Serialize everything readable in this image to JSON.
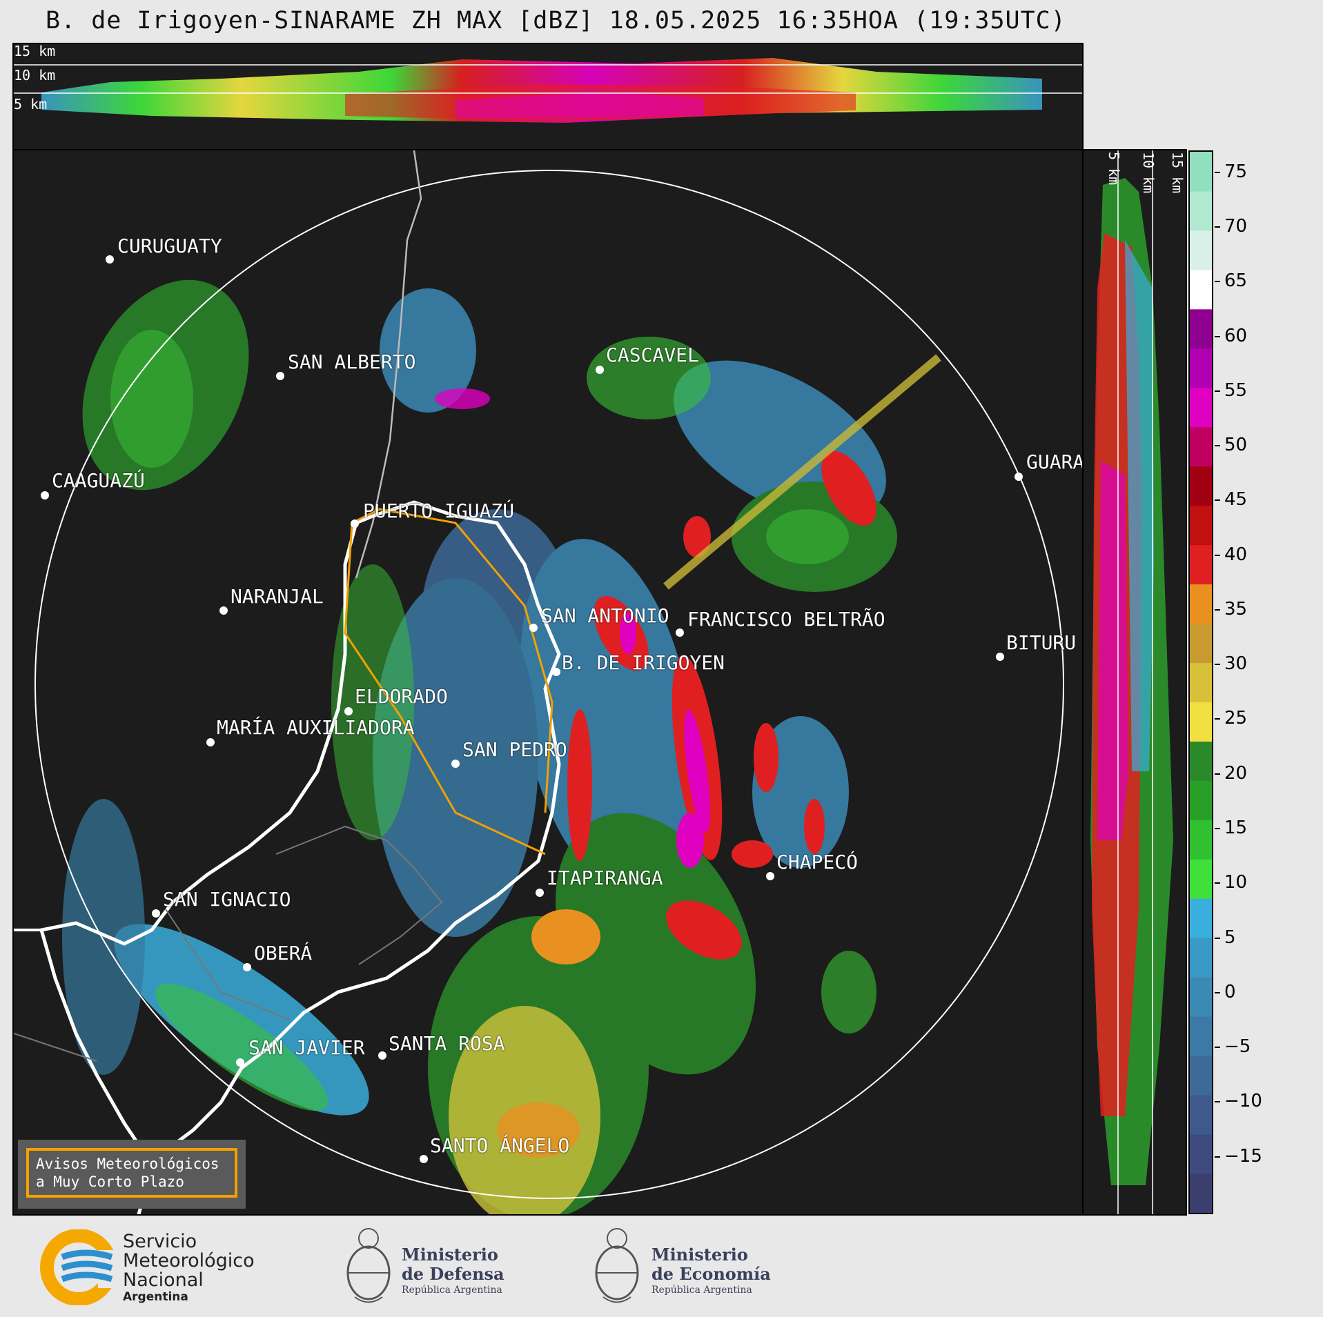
{
  "title": "B. de Irigoyen-SINARAME ZH MAX [dBZ] 18.05.2025 16:35HOA (19:35UTC)",
  "top_panel": {
    "labels": [
      "15 km",
      "10 km",
      "5 km"
    ]
  },
  "side_panel": {
    "labels": [
      "5 km",
      "10 km",
      "15 km"
    ]
  },
  "cities": [
    {
      "name": "CURUGUATY"
    },
    {
      "name": "SAN ALBERTO"
    },
    {
      "name": "CASCAVEL"
    },
    {
      "name": "CAAGUAZÚ"
    },
    {
      "name": "GUARA"
    },
    {
      "name": "PUERTO IGUAZÚ"
    },
    {
      "name": "NARANJAL"
    },
    {
      "name": "SAN ANTONIO"
    },
    {
      "name": "FRANCISCO BELTRÃO"
    },
    {
      "name": "BITURU"
    },
    {
      "name": "B. DE IRIGOYEN"
    },
    {
      "name": "ELDORADO"
    },
    {
      "name": "MARÍA AUXILIADORA"
    },
    {
      "name": "SAN PEDRO"
    },
    {
      "name": "CHAPECÓ"
    },
    {
      "name": "ITAPIRANGA"
    },
    {
      "name": "SAN IGNACIO"
    },
    {
      "name": "OBERÁ"
    },
    {
      "name": "SAN JAVIER"
    },
    {
      "name": "SANTA ROSA"
    },
    {
      "name": "SANTO ÁNGELO"
    }
  ],
  "colorbar": {
    "unit": "dBZ",
    "ticks": [
      "75",
      "70",
      "65",
      "60",
      "55",
      "50",
      "45",
      "40",
      "35",
      "30",
      "25",
      "20",
      "15",
      "10",
      "5",
      "0",
      "−5",
      "−10",
      "−15"
    ],
    "range": [
      -20,
      77
    ],
    "colors": [
      "#3a3f6e",
      "#3f4a80",
      "#3e5a8c",
      "#3d6a98",
      "#3b7aa6",
      "#3b8ab6",
      "#3a9ac6",
      "#3aaedc",
      "#3fe03a",
      "#30c030",
      "#28a028",
      "#2a8a2a",
      "#f0e040",
      "#d8c038",
      "#c89a30",
      "#e89020",
      "#e02020",
      "#c01010",
      "#a00010",
      "#c00060",
      "#e000c0",
      "#b000b0",
      "#900090",
      "#ffffff",
      "#d8f0e8",
      "#b0e8d0",
      "#90e0c0"
    ]
  },
  "warning_box": {
    "line1": "Avisos Meteorológicos",
    "line2": "a Muy Corto Plazo"
  },
  "logos": {
    "smn": {
      "line1": "Servicio",
      "line2": "Meteorológico",
      "line3": "Nacional",
      "line4": "Argentina"
    },
    "defensa": {
      "line1": "Ministerio",
      "line2": "de Defensa",
      "line3": "República Argentina"
    },
    "economia": {
      "line1": "Ministerio",
      "line2": "de Economía",
      "line3": "República Argentina"
    }
  }
}
